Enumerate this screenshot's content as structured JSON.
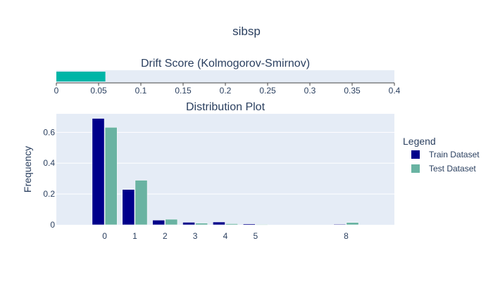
{
  "figure_title": "sibsp",
  "legend": {
    "title": "Legend",
    "items": [
      {
        "label": "Train Dataset",
        "color": "#00008b"
      },
      {
        "label": "Test Dataset",
        "color": "#69b3a2"
      }
    ]
  },
  "colors": {
    "plot_bg": "#e5ecf6",
    "grid": "#ffffff",
    "text": "#2a3f5f",
    "drift_bar": "#00b5a7"
  },
  "chart_data": [
    {
      "type": "bar",
      "orientation": "horizontal",
      "title": "Drift Score (Kolmogorov-Smirnov)",
      "value": 0.058,
      "xlim": [
        0,
        0.4
      ],
      "xticks": [
        "0",
        "0.05",
        "0.1",
        "0.15",
        "0.2",
        "0.25",
        "0.3",
        "0.35",
        "0.4"
      ],
      "grid": false
    },
    {
      "type": "bar",
      "title": "Distribution Plot",
      "ylabel": "Frequency",
      "xlabel": "",
      "x": [
        0,
        1,
        2,
        3,
        4,
        5,
        8
      ],
      "xticks": [
        "0",
        "1",
        "2",
        "3",
        "4",
        "5",
        "8"
      ],
      "yticks": [
        "0",
        "0.2",
        "0.4",
        "0.6"
      ],
      "xlim": [
        -1.6,
        9.6
      ],
      "ylim": [
        0,
        0.72
      ],
      "grid": true,
      "legend_position": "right",
      "series": [
        {
          "name": "Train Dataset",
          "values": [
            0.69,
            0.229,
            0.03,
            0.016,
            0.018,
            0.006,
            0.004
          ]
        },
        {
          "name": "Test Dataset",
          "values": [
            0.632,
            0.289,
            0.036,
            0.011,
            0.007,
            0.002,
            0.015
          ]
        }
      ]
    }
  ]
}
